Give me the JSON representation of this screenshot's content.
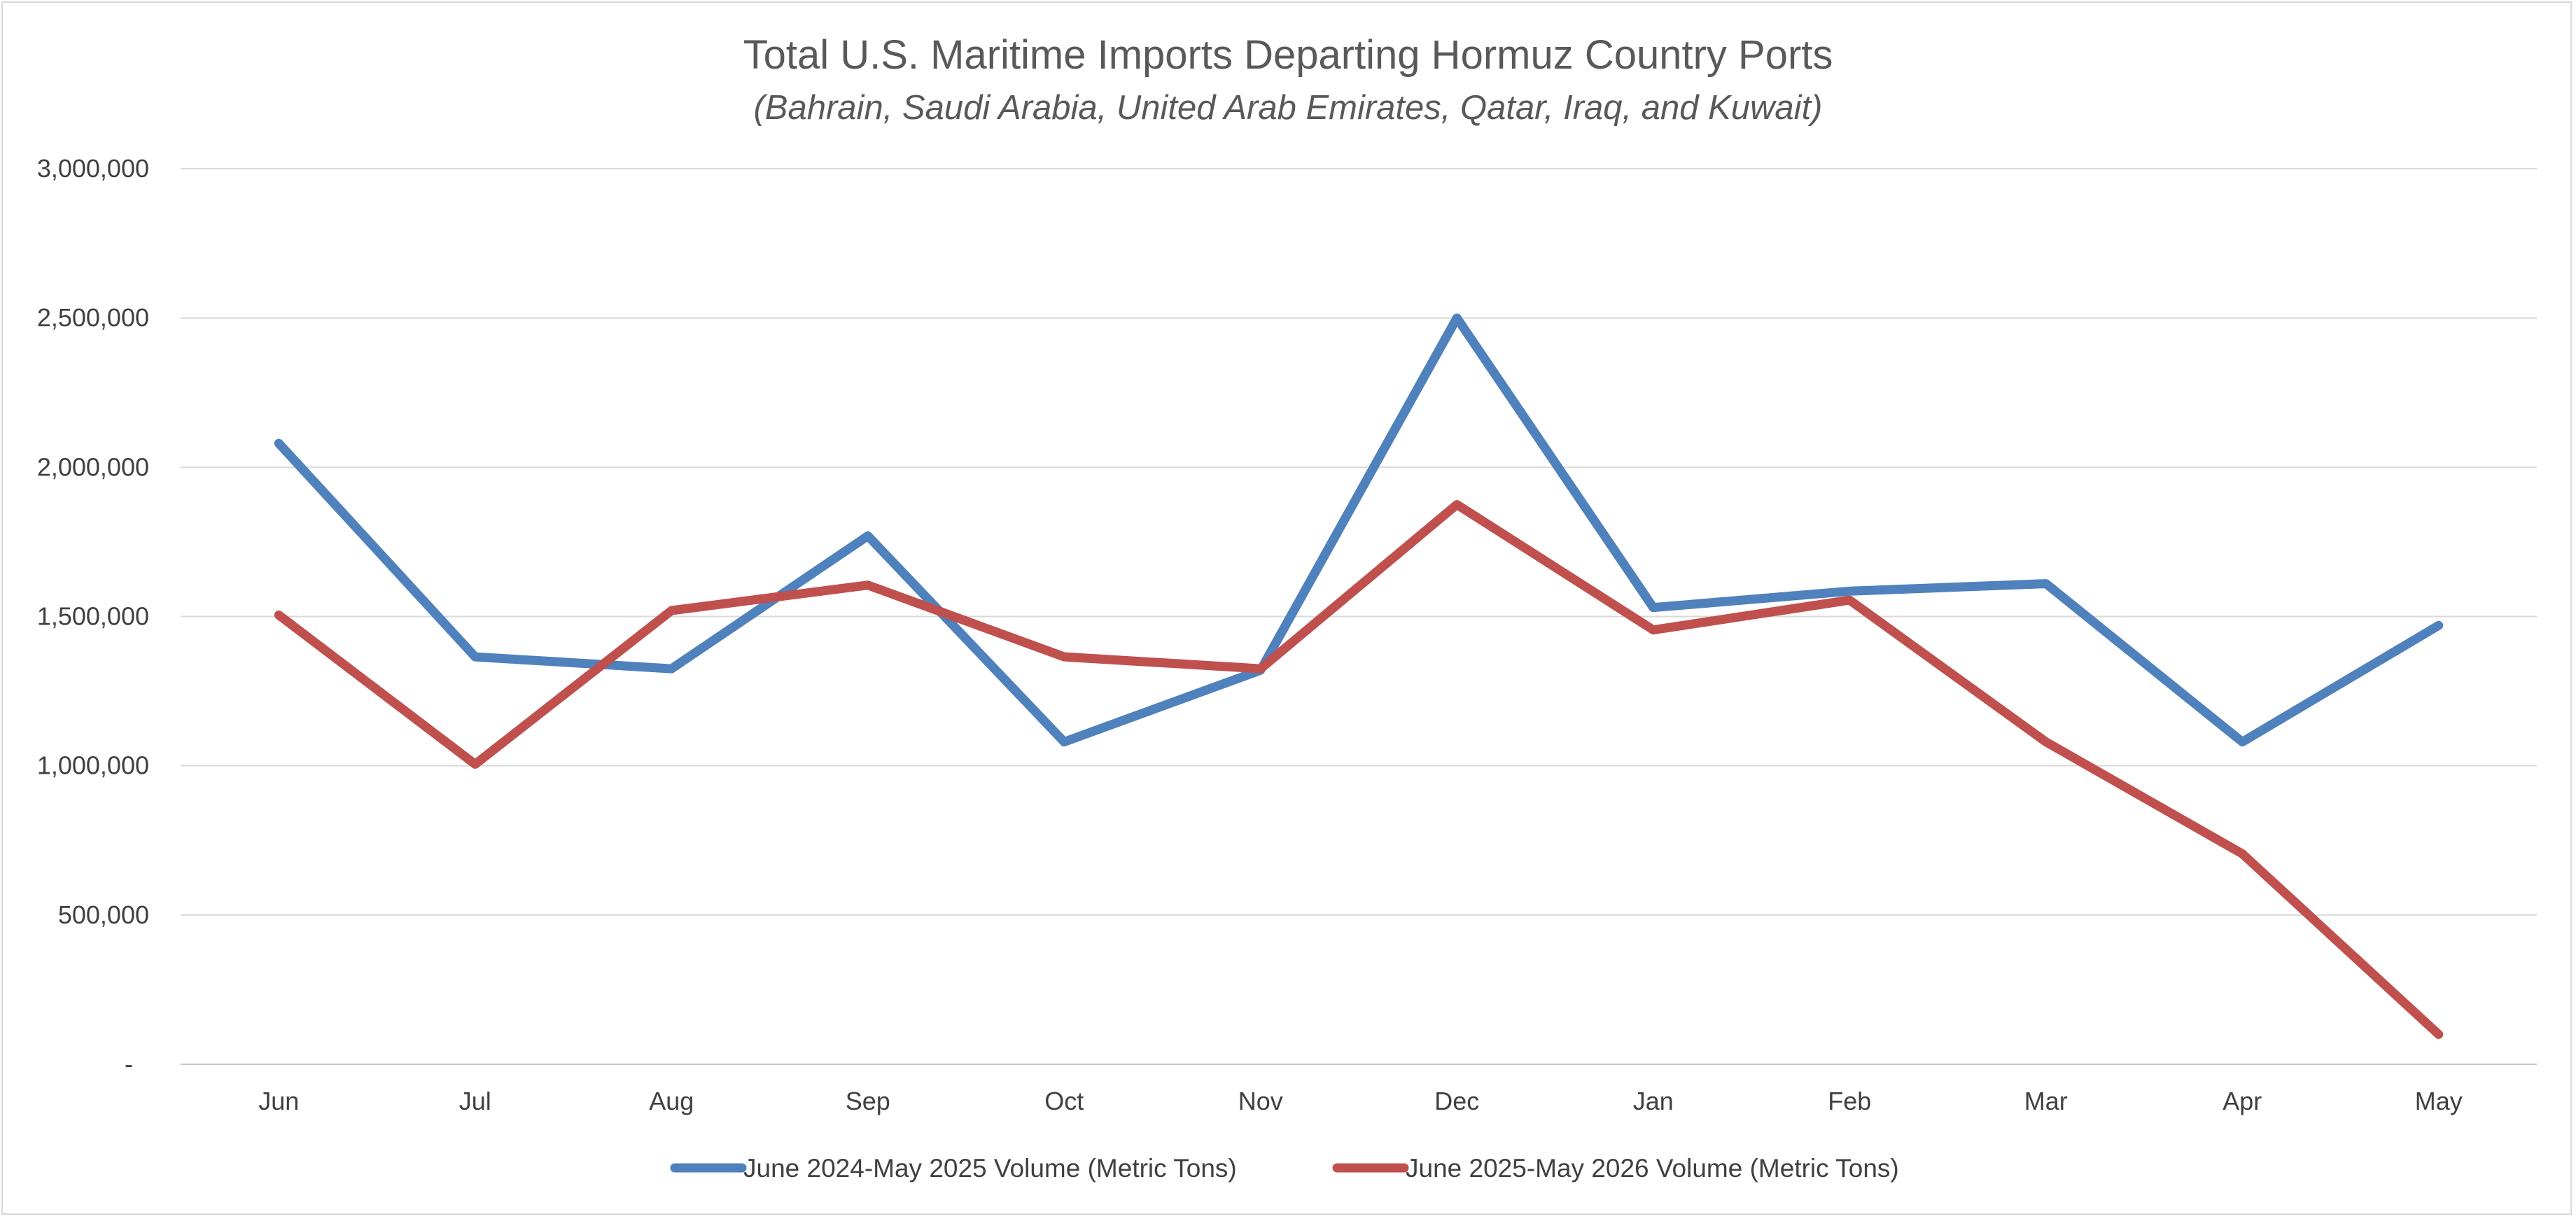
{
  "chart_data": {
    "type": "line",
    "title": "Total U.S. Maritime Imports Departing Hormuz Country Ports",
    "subtitle": "(Bahrain, Saudi Arabia, United Arab Emirates, Qatar, Iraq, and Kuwait)",
    "categories": [
      "Jun",
      "Jul",
      "Aug",
      "Sep",
      "Oct",
      "Nov",
      "Dec",
      "Jan",
      "Feb",
      "Mar",
      "Apr",
      "May"
    ],
    "ylim": [
      0,
      3000000
    ],
    "yticks": [
      0,
      500000,
      1000000,
      1500000,
      2000000,
      2500000,
      3000000
    ],
    "ytick_labels": [
      "-",
      "500,000",
      "1,000,000",
      "1,500,000",
      "2,000,000",
      "2,500,000",
      "3,000,000"
    ],
    "grid": true,
    "legend_position": "bottom",
    "series": [
      {
        "name": "June 2024-May 2025 Volume (Metric Tons)",
        "color": "#4f81bd",
        "values": [
          2080000,
          1365000,
          1325000,
          1770000,
          1080000,
          1320000,
          2500000,
          1530000,
          1585000,
          1610000,
          1080000,
          1470000
        ]
      },
      {
        "name": "June 2025-May 2026 Volume (Metric Tons)",
        "color": "#c0504d",
        "values": [
          1505000,
          1005000,
          1520000,
          1605000,
          1365000,
          1325000,
          1875000,
          1455000,
          1555000,
          1080000,
          705000,
          100000
        ]
      }
    ]
  }
}
